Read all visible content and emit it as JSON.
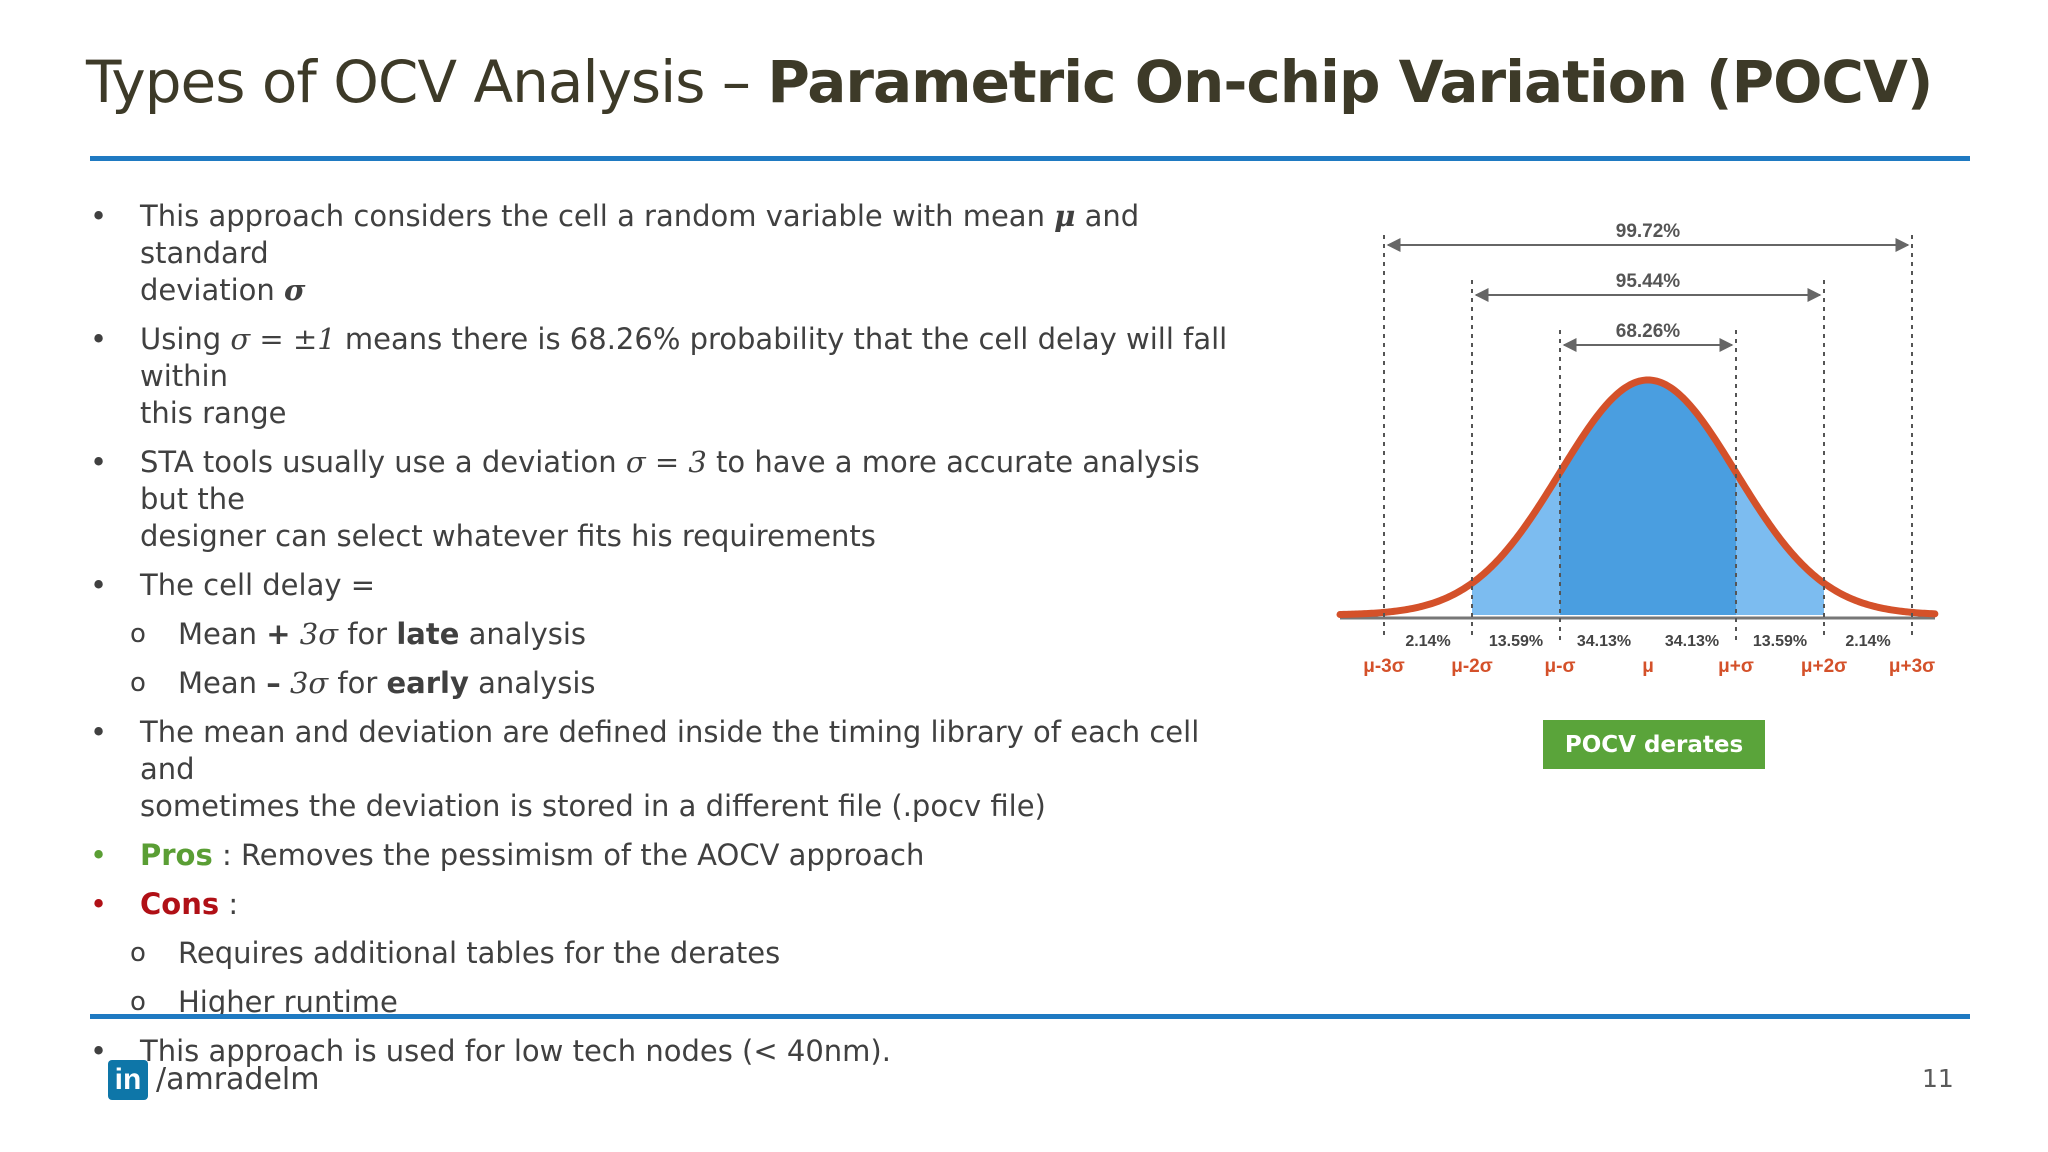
{
  "header": {
    "title_light": "Types of OCV Analysis – ",
    "title_bold": "Parametric On-chip Variation (POCV)"
  },
  "bullets": {
    "b1_a": "This approach considers the cell a random variable with mean ",
    "b1_mu": "μ",
    "b1_b": " and standard",
    "b1_c": "deviation ",
    "b1_sigma": "σ",
    "b2_a": "Using ",
    "b2_math": "σ = ±1",
    "b2_b": " means there is 68.26% probability that the cell delay will fall within",
    "b2_c": "this range",
    "b3_a": "STA tools usually use a deviation ",
    "b3_math": "σ = 3",
    "b3_b": " to have a more accurate analysis but the",
    "b3_c": "designer can select whatever fits his requirements",
    "b4": "The cell delay =",
    "s1_a": "Mean ",
    "s1_op": "+",
    "s1_math": " 3σ",
    "s1_b": " for ",
    "s1_bold": "late",
    "s1_c": " analysis",
    "s2_a": "Mean ",
    "s2_op": "–",
    "s2_math": " 3σ",
    "s2_b": " for ",
    "s2_bold": "early",
    "s2_c": " analysis",
    "b5_a": "The mean and deviation are defined inside the timing library of each cell and",
    "b5_b": "sometimes the deviation is stored in a different file (.pocv file)",
    "pros_label": "Pros",
    "pros_text": " : Removes the pessimism of the AOCV approach",
    "cons_label": "Cons",
    "cons_text": " :",
    "s3": "Requires additional tables for the derates",
    "s4": "Higher runtime",
    "b6": " This approach is used for low tech nodes (< 40nm).",
    "bullet_char": "•",
    "sub_bullet_char": "o"
  },
  "chart_data": {
    "type": "area",
    "range_labels": [
      "99.72%",
      "95.44%",
      "68.26%"
    ],
    "segment_percentages": [
      "2.14%",
      "13.59%",
      "34.13%",
      "34.13%",
      "13.59%",
      "2.14%"
    ],
    "x_tick_labels": [
      "μ-3σ",
      "μ-2σ",
      "μ-σ",
      "μ",
      "μ+σ",
      "μ+2σ",
      "μ+3σ"
    ],
    "x_sigma": [
      -3,
      -2,
      -1,
      0,
      1,
      2,
      3
    ],
    "colors": {
      "curve": "#d4512a",
      "inner": "#4a9ee0",
      "middle": "#7cbcf0",
      "tick_text": "#d4512a"
    }
  },
  "badge": {
    "label": "POCV derates",
    "color": "#5aa43a"
  },
  "footer": {
    "logo_text": "in",
    "handle": "/amradelm",
    "page_number": "11"
  }
}
